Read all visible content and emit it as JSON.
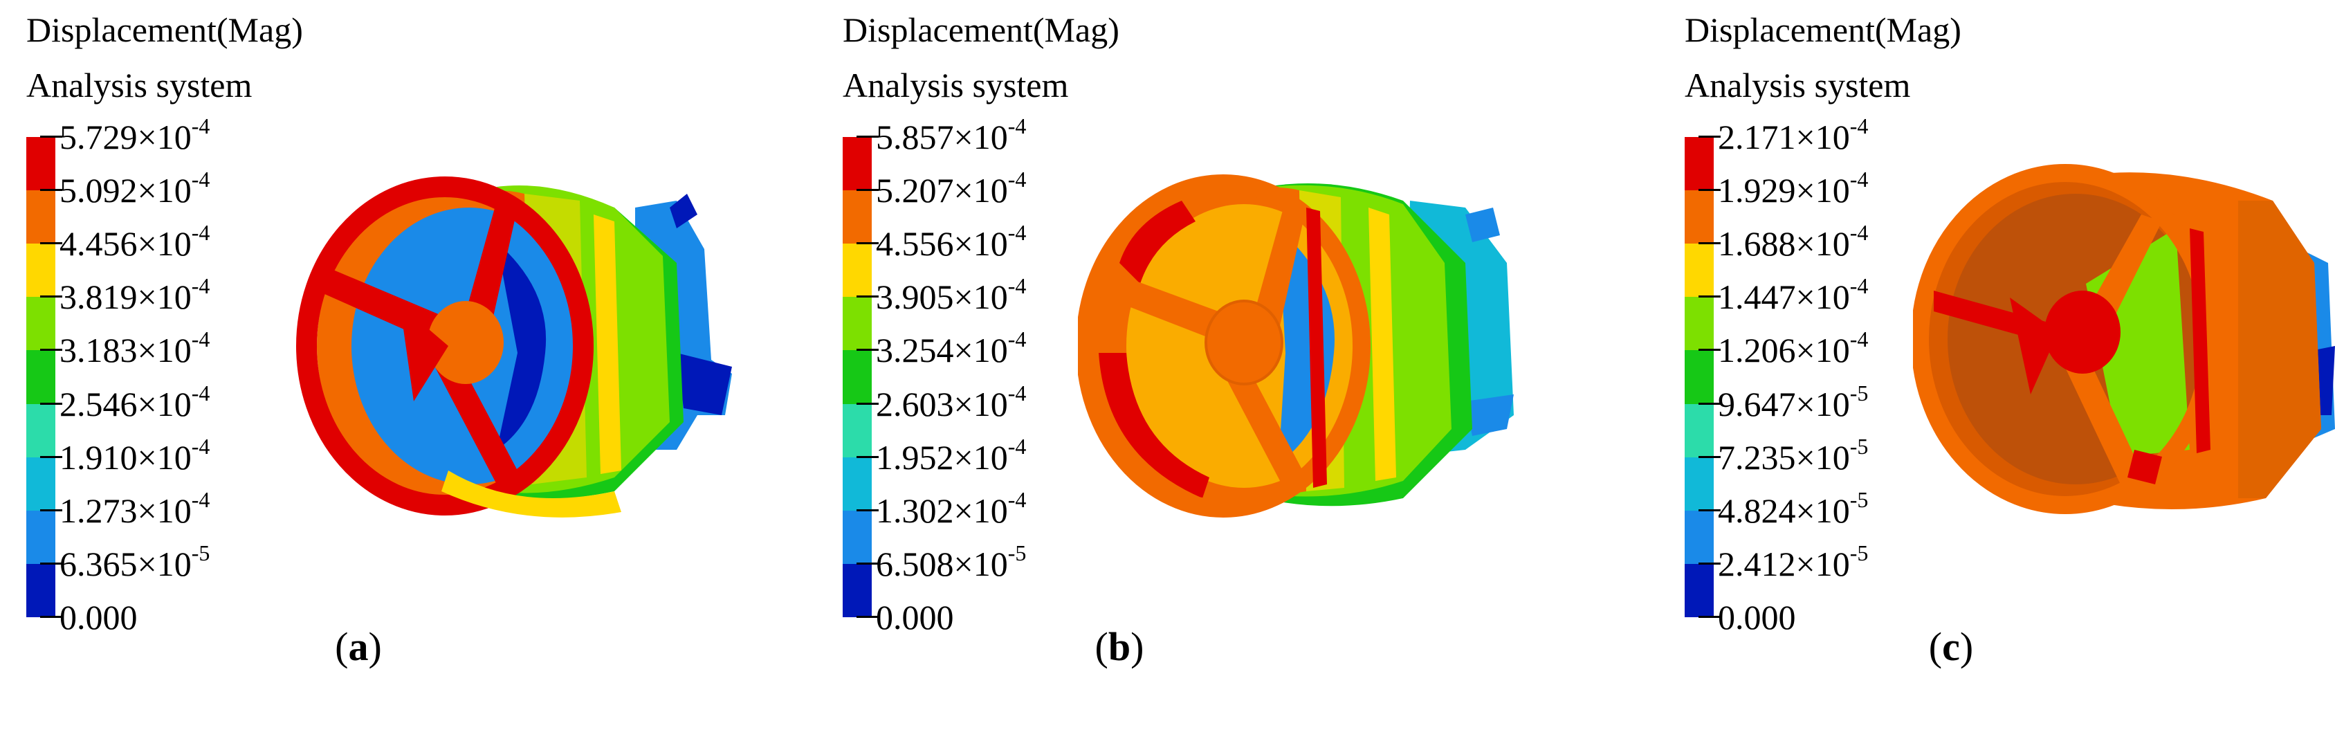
{
  "legend_colors": [
    "#e00000",
    "#f26a00",
    "#ffd800",
    "#7de000",
    "#16c816",
    "#2cdcaa",
    "#11b9d8",
    "#1a8ae8",
    "#0018b8"
  ],
  "panels": [
    {
      "id": "a",
      "title": "Displacement(Mag)",
      "subtitle": "Analysis system",
      "ticks": [
        {
          "mantissa": "5.729",
          "exp": "-4"
        },
        {
          "mantissa": "5.092",
          "exp": "-4"
        },
        {
          "mantissa": "4.456",
          "exp": "-4"
        },
        {
          "mantissa": "3.819",
          "exp": "-4"
        },
        {
          "mantissa": "3.183",
          "exp": "-4"
        },
        {
          "mantissa": "2.546",
          "exp": "-4"
        },
        {
          "mantissa": "1.910",
          "exp": "-4"
        },
        {
          "mantissa": "1.273",
          "exp": "-4"
        },
        {
          "mantissa": "6.365",
          "exp": "-5"
        },
        {
          "mantissa": "0.000",
          "exp": ""
        }
      ],
      "caption_label": "a"
    },
    {
      "id": "b",
      "title": "Displacement(Mag)",
      "subtitle": "Analysis system",
      "ticks": [
        {
          "mantissa": "5.857",
          "exp": "-4"
        },
        {
          "mantissa": "5.207",
          "exp": "-4"
        },
        {
          "mantissa": "4.556",
          "exp": "-4"
        },
        {
          "mantissa": "3.905",
          "exp": "-4"
        },
        {
          "mantissa": "3.254",
          "exp": "-4"
        },
        {
          "mantissa": "2.603",
          "exp": "-4"
        },
        {
          "mantissa": "1.952",
          "exp": "-4"
        },
        {
          "mantissa": "1.302",
          "exp": "-4"
        },
        {
          "mantissa": "6.508",
          "exp": "-5"
        },
        {
          "mantissa": "0.000",
          "exp": ""
        }
      ],
      "caption_label": "b"
    },
    {
      "id": "c",
      "title": "Displacement(Mag)",
      "subtitle": "Analysis system",
      "ticks": [
        {
          "mantissa": "2.171",
          "exp": "-4"
        },
        {
          "mantissa": "1.929",
          "exp": "-4"
        },
        {
          "mantissa": "1.688",
          "exp": "-4"
        },
        {
          "mantissa": "1.447",
          "exp": "-4"
        },
        {
          "mantissa": "1.206",
          "exp": "-4"
        },
        {
          "mantissa": "9.647",
          "exp": "-5"
        },
        {
          "mantissa": "7.235",
          "exp": "-5"
        },
        {
          "mantissa": "4.824",
          "exp": "-5"
        },
        {
          "mantissa": "2.412",
          "exp": "-5"
        },
        {
          "mantissa": "0.000",
          "exp": ""
        }
      ],
      "caption_label": "c"
    }
  ]
}
